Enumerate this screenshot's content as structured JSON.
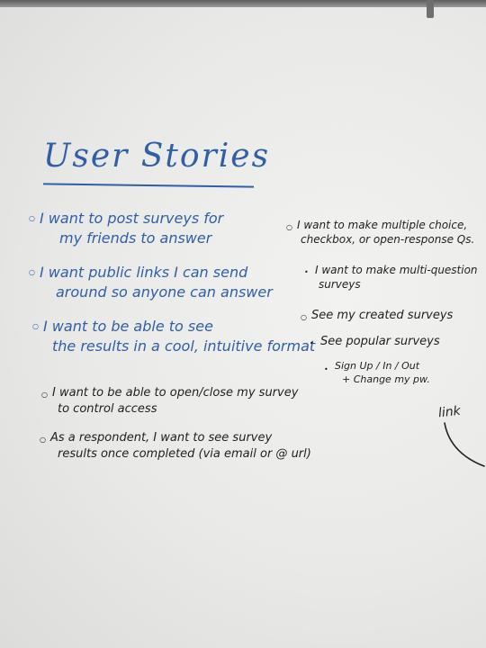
{
  "title": "User Stories",
  "blue_stories": [
    {
      "lines": [
        "I want to post surveys for",
        "my friends to answer"
      ]
    },
    {
      "lines": [
        "I want public links I can send",
        "around so anyone can answer"
      ]
    },
    {
      "lines": [
        "I want to be able to see",
        "the results in a cool, intuitive format"
      ]
    }
  ],
  "black_left_stories": [
    {
      "lines": [
        "I want to be able to open/close my survey",
        "to control access"
      ]
    },
    {
      "lines": [
        "As a respondent, I want to see survey",
        "results once completed (via email or @ url)"
      ]
    }
  ],
  "right_stories": [
    {
      "lines": [
        "I want to make multiple choice,",
        "checkbox, or open-response Qs."
      ]
    },
    {
      "lines": [
        "I want to make multi-question",
        "surveys"
      ]
    },
    {
      "lines": [
        "See my created surveys"
      ]
    },
    {
      "lines": [
        "See popular surveys"
      ]
    },
    {
      "lines": [
        "Sign Up / In / Out",
        "+ Change my pw."
      ]
    }
  ],
  "side_note": "link",
  "colors": {
    "blue_marker": "#2f5fa7",
    "black_marker": "#1f1f1f",
    "board": "#eeeeec"
  }
}
